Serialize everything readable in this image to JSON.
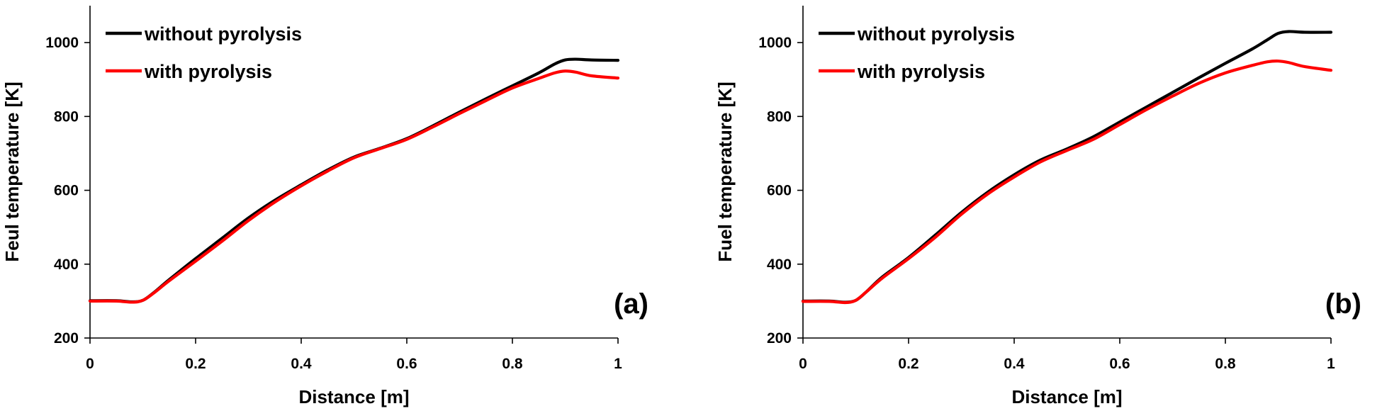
{
  "chart_data": [
    {
      "type": "line",
      "panel_label": "(a)",
      "xlabel": "Distance [m]",
      "ylabel": "Feul temperature [K]",
      "xlim": [
        0,
        1
      ],
      "ylim": [
        200,
        1100
      ],
      "xticks": [
        0,
        0.2,
        0.4,
        0.6,
        0.8,
        1
      ],
      "xtick_labels": [
        "0",
        "0.2",
        "0.4",
        "0.6",
        "0.8",
        "1"
      ],
      "yticks": [
        200,
        400,
        600,
        800,
        1000
      ],
      "ytick_labels": [
        "200",
        "400",
        "600",
        "800",
        "1000"
      ],
      "grid": false,
      "legend_position": "top-left",
      "series": [
        {
          "name": "without pyrolysis",
          "color": "#000000",
          "x": [
            0,
            0.05,
            0.08,
            0.1,
            0.12,
            0.15,
            0.2,
            0.25,
            0.3,
            0.35,
            0.4,
            0.45,
            0.5,
            0.55,
            0.6,
            0.65,
            0.7,
            0.75,
            0.8,
            0.85,
            0.88,
            0.9,
            0.92,
            0.95,
            1.0
          ],
          "y": [
            301,
            301,
            298,
            302,
            322,
            358,
            415,
            470,
            525,
            573,
            615,
            655,
            690,
            714,
            740,
            775,
            812,
            848,
            883,
            918,
            942,
            953,
            955,
            953,
            952
          ]
        },
        {
          "name": "with pyrolysis",
          "color": "#ff0000",
          "x": [
            0,
            0.05,
            0.08,
            0.1,
            0.12,
            0.15,
            0.2,
            0.25,
            0.3,
            0.35,
            0.4,
            0.45,
            0.5,
            0.55,
            0.6,
            0.65,
            0.7,
            0.75,
            0.8,
            0.85,
            0.88,
            0.9,
            0.92,
            0.95,
            1.0
          ],
          "y": [
            300,
            300,
            297,
            302,
            321,
            355,
            408,
            462,
            518,
            568,
            612,
            652,
            688,
            713,
            738,
            772,
            808,
            843,
            877,
            903,
            918,
            923,
            920,
            910,
            904
          ]
        }
      ]
    },
    {
      "type": "line",
      "panel_label": "(b)",
      "xlabel": "Distance [m]",
      "ylabel": "Fuel temperature [K]",
      "xlim": [
        0,
        1
      ],
      "ylim": [
        200,
        1100
      ],
      "xticks": [
        0,
        0.2,
        0.4,
        0.6,
        0.8,
        1
      ],
      "xtick_labels": [
        "0",
        "0.2",
        "0.4",
        "0.6",
        "0.8",
        "1"
      ],
      "yticks": [
        200,
        400,
        600,
        800,
        1000
      ],
      "ytick_labels": [
        "200",
        "400",
        "600",
        "800",
        "1000"
      ],
      "grid": false,
      "legend_position": "top-left",
      "series": [
        {
          "name": "without pyrolysis",
          "color": "#000000",
          "x": [
            0,
            0.05,
            0.08,
            0.1,
            0.12,
            0.15,
            0.2,
            0.25,
            0.3,
            0.35,
            0.4,
            0.45,
            0.5,
            0.55,
            0.6,
            0.65,
            0.7,
            0.75,
            0.8,
            0.85,
            0.88,
            0.9,
            0.92,
            0.95,
            1.0
          ],
          "y": [
            300,
            300,
            297,
            302,
            325,
            365,
            418,
            478,
            540,
            595,
            642,
            682,
            712,
            745,
            785,
            825,
            865,
            905,
            944,
            982,
            1008,
            1025,
            1030,
            1028,
            1028
          ]
        },
        {
          "name": "with pyrolysis",
          "color": "#ff0000",
          "x": [
            0,
            0.05,
            0.08,
            0.1,
            0.12,
            0.15,
            0.2,
            0.25,
            0.3,
            0.35,
            0.4,
            0.45,
            0.5,
            0.55,
            0.6,
            0.65,
            0.7,
            0.75,
            0.8,
            0.85,
            0.88,
            0.9,
            0.92,
            0.95,
            1.0
          ],
          "y": [
            299,
            299,
            296,
            302,
            325,
            362,
            415,
            472,
            535,
            590,
            636,
            677,
            708,
            738,
            778,
            818,
            855,
            890,
            918,
            938,
            948,
            950,
            946,
            935,
            925
          ]
        }
      ]
    }
  ]
}
